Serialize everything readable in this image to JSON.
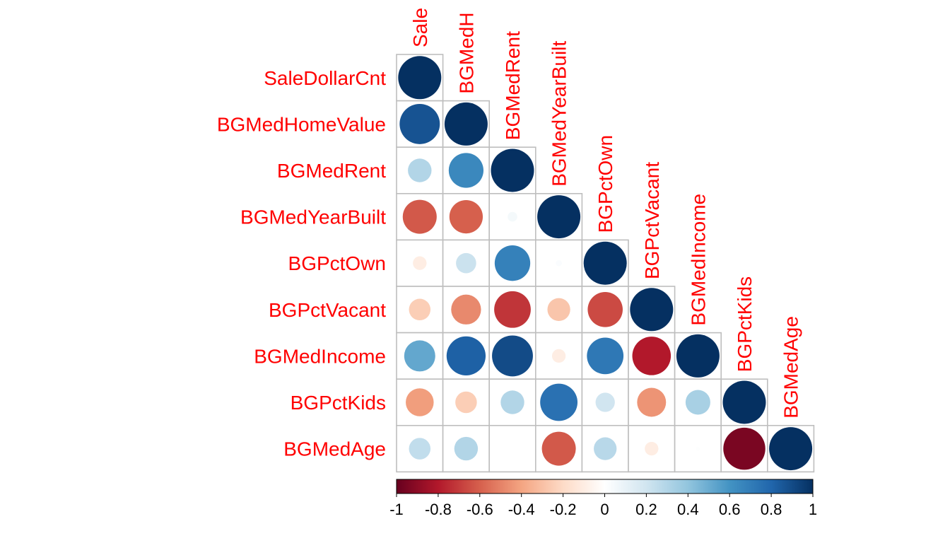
{
  "chart_data": {
    "type": "heatmap",
    "variant": "lower-triangle correlation plot with circles",
    "variables": [
      "SaleDollarCnt",
      "BGMedHomeValue",
      "BGMedRent",
      "BGMedYearBuilt",
      "BGPctOwn",
      "BGPctVacant",
      "BGMedIncome",
      "BGPctKids",
      "BGMedAge"
    ],
    "column_labels_visible": [
      "Sale",
      "BGMedH",
      "BGMedRent",
      "BGMedYearBuilt",
      "BGPctOwn",
      "BGPctVacant",
      "BGMedIncome",
      "BGPctKids",
      "BGMedAge"
    ],
    "matrix": [
      [
        1.0
      ],
      [
        0.87,
        1.0
      ],
      [
        0.3,
        0.65,
        1.0
      ],
      [
        -0.62,
        -0.6,
        0.05,
        1.0
      ],
      [
        -0.1,
        0.22,
        0.68,
        0.02,
        1.0
      ],
      [
        -0.25,
        -0.48,
        -0.72,
        -0.28,
        -0.66,
        1.0
      ],
      [
        0.52,
        0.82,
        0.9,
        -0.1,
        0.72,
        -0.8,
        1.0
      ],
      [
        -0.42,
        -0.25,
        0.3,
        0.75,
        0.2,
        -0.45,
        0.33,
        1.0
      ],
      [
        0.25,
        0.3,
        0.0,
        -0.62,
        0.28,
        -0.1,
        0.01,
        -0.95,
        1.0
      ]
    ],
    "colorbar": {
      "range": [
        -1,
        1
      ],
      "ticks": [
        "-1",
        "-0.8",
        "-0.6",
        "-0.4",
        "-0.2",
        "0",
        "0.2",
        "0.4",
        "0.6",
        "0.8",
        "1"
      ],
      "low_color": "#67001f",
      "mid_color": "#ffffff",
      "high_color": "#053061"
    },
    "label_color": "#ff0000",
    "grid": true
  }
}
